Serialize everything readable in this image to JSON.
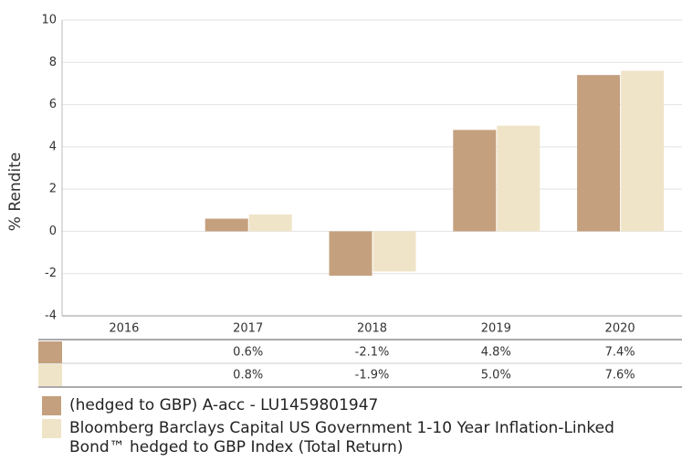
{
  "chart_data": {
    "type": "bar",
    "y_label": "% Rendite",
    "categories": [
      "2016",
      "2017",
      "2018",
      "2019",
      "2020"
    ],
    "series": [
      {
        "name": "(hedged to GBP) A-acc - LU1459801947",
        "color": "#c4a07e",
        "values": [
          null,
          0.6,
          -2.1,
          4.8,
          7.4
        ],
        "value_labels": [
          null,
          "0.6%",
          "-2.1%",
          "4.8%",
          "7.4%"
        ]
      },
      {
        "name": "Bloomberg Barclays Capital US Government 1-10 Year Inflation-Linked Bond™ hedged to GBP Index (Total Return)",
        "color": "#f0e4c8",
        "values": [
          null,
          0.8,
          -1.9,
          5.0,
          7.6
        ],
        "value_labels": [
          null,
          "0.8%",
          "-1.9%",
          "5.0%",
          "7.6%"
        ]
      }
    ],
    "ylim": [
      -4,
      10
    ],
    "yticks": [
      -4,
      -2,
      0,
      2,
      4,
      6,
      8,
      10
    ],
    "grid": true
  }
}
